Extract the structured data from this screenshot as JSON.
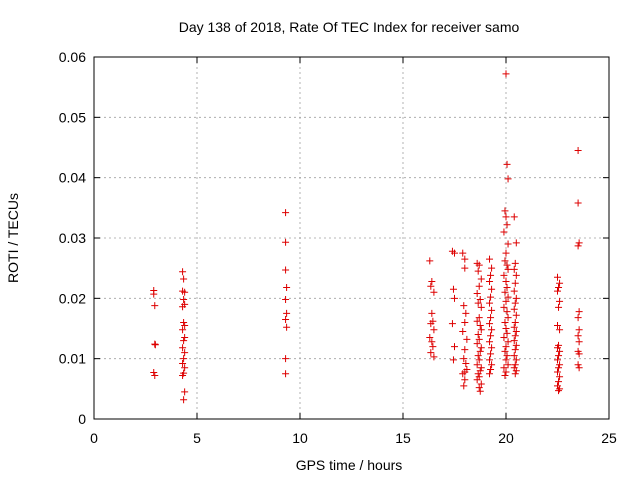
{
  "chart_data": {
    "type": "scatter",
    "title": "Day 138 of 2018, Rate Of TEC Index for receiver samo",
    "xlabel": "GPS time / hours",
    "ylabel": "ROTI / TECUs",
    "xlim": [
      0,
      25
    ],
    "ylim": [
      0,
      0.06
    ],
    "x_ticks": [
      0,
      5,
      10,
      15,
      20,
      25
    ],
    "y_ticks": [
      0,
      0.01,
      0.02,
      0.03,
      0.04,
      0.05,
      0.06
    ],
    "x_tick_labels": [
      "0",
      "5",
      "10",
      "15",
      "20",
      "25"
    ],
    "y_tick_labels": [
      "0",
      "0.01",
      "0.02",
      "0.03",
      "0.04",
      "0.05",
      "0.06"
    ],
    "grid": true,
    "marker": "plus",
    "color": "#dd0000",
    "series": [
      {
        "points": [
          [
            2.9,
            0.0213
          ],
          [
            2.9,
            0.0207
          ],
          [
            2.95,
            0.0188
          ],
          [
            2.95,
            0.0124
          ],
          [
            2.98,
            0.0123
          ],
          [
            2.9,
            0.0077
          ],
          [
            2.95,
            0.0072
          ],
          [
            4.3,
            0.0244
          ],
          [
            4.35,
            0.0232
          ],
          [
            4.3,
            0.0212
          ],
          [
            4.4,
            0.021
          ],
          [
            4.35,
            0.0198
          ],
          [
            4.4,
            0.019
          ],
          [
            4.3,
            0.0186
          ],
          [
            4.35,
            0.016
          ],
          [
            4.4,
            0.0155
          ],
          [
            4.3,
            0.0148
          ],
          [
            4.4,
            0.0135
          ],
          [
            4.35,
            0.013
          ],
          [
            4.3,
            0.0118
          ],
          [
            4.4,
            0.011
          ],
          [
            4.35,
            0.01
          ],
          [
            4.3,
            0.0092
          ],
          [
            4.4,
            0.0085
          ],
          [
            4.35,
            0.0076
          ],
          [
            4.3,
            0.0072
          ],
          [
            4.4,
            0.0045
          ],
          [
            4.35,
            0.0032
          ],
          [
            9.3,
            0.0342
          ],
          [
            9.3,
            0.0293
          ],
          [
            9.3,
            0.0247
          ],
          [
            9.35,
            0.0218
          ],
          [
            9.3,
            0.0198
          ],
          [
            9.35,
            0.0175
          ],
          [
            9.3,
            0.0165
          ],
          [
            9.35,
            0.0152
          ],
          [
            9.3,
            0.01
          ],
          [
            9.3,
            0.0075
          ],
          [
            16.3,
            0.0262
          ],
          [
            16.4,
            0.0228
          ],
          [
            16.35,
            0.022
          ],
          [
            16.5,
            0.021
          ],
          [
            16.4,
            0.0175
          ],
          [
            16.45,
            0.0162
          ],
          [
            16.35,
            0.0158
          ],
          [
            16.5,
            0.0148
          ],
          [
            16.3,
            0.0135
          ],
          [
            16.4,
            0.0128
          ],
          [
            16.45,
            0.012
          ],
          [
            16.35,
            0.011
          ],
          [
            16.5,
            0.0103
          ],
          [
            17.4,
            0.0278
          ],
          [
            17.5,
            0.0275
          ],
          [
            17.45,
            0.0215
          ],
          [
            17.5,
            0.02
          ],
          [
            17.4,
            0.0158
          ],
          [
            17.5,
            0.012
          ],
          [
            17.45,
            0.0098
          ],
          [
            17.9,
            0.0275
          ],
          [
            18.0,
            0.0265
          ],
          [
            18.0,
            0.025
          ],
          [
            17.95,
            0.0188
          ],
          [
            18.05,
            0.0175
          ],
          [
            18.0,
            0.016
          ],
          [
            17.9,
            0.0145
          ],
          [
            18.1,
            0.0132
          ],
          [
            18.0,
            0.0115
          ],
          [
            17.95,
            0.01
          ],
          [
            18.05,
            0.0092
          ],
          [
            18.1,
            0.0082
          ],
          [
            18.0,
            0.0078
          ],
          [
            17.9,
            0.0075
          ],
          [
            18.0,
            0.0065
          ],
          [
            17.95,
            0.0055
          ],
          [
            18.6,
            0.0258
          ],
          [
            18.7,
            0.0255
          ],
          [
            18.65,
            0.0245
          ],
          [
            18.8,
            0.0232
          ],
          [
            18.7,
            0.022
          ],
          [
            18.6,
            0.0208
          ],
          [
            18.75,
            0.0198
          ],
          [
            18.65,
            0.0192
          ],
          [
            18.8,
            0.0185
          ],
          [
            18.7,
            0.0168
          ],
          [
            18.6,
            0.0162
          ],
          [
            18.75,
            0.0155
          ],
          [
            18.8,
            0.0148
          ],
          [
            18.65,
            0.014
          ],
          [
            18.7,
            0.0132
          ],
          [
            18.6,
            0.0125
          ],
          [
            18.8,
            0.0118
          ],
          [
            18.75,
            0.0112
          ],
          [
            18.65,
            0.0105
          ],
          [
            18.7,
            0.0098
          ],
          [
            18.6,
            0.009
          ],
          [
            18.8,
            0.0085
          ],
          [
            18.75,
            0.008
          ],
          [
            18.65,
            0.0075
          ],
          [
            18.7,
            0.007
          ],
          [
            18.6,
            0.0065
          ],
          [
            18.8,
            0.0058
          ],
          [
            18.7,
            0.0052
          ],
          [
            18.75,
            0.0046
          ],
          [
            19.2,
            0.0265
          ],
          [
            19.3,
            0.025
          ],
          [
            19.25,
            0.0238
          ],
          [
            19.2,
            0.0228
          ],
          [
            19.3,
            0.0215
          ],
          [
            19.25,
            0.0202
          ],
          [
            19.2,
            0.0192
          ],
          [
            19.3,
            0.018
          ],
          [
            19.25,
            0.0168
          ],
          [
            19.2,
            0.0158
          ],
          [
            19.3,
            0.0148
          ],
          [
            19.25,
            0.0138
          ],
          [
            19.2,
            0.0128
          ],
          [
            19.3,
            0.0118
          ],
          [
            19.25,
            0.0108
          ],
          [
            19.2,
            0.0098
          ],
          [
            19.3,
            0.009
          ],
          [
            19.25,
            0.0082
          ],
          [
            19.2,
            0.0075
          ],
          [
            20.0,
            0.0572
          ],
          [
            20.05,
            0.0422
          ],
          [
            20.1,
            0.0398
          ],
          [
            19.95,
            0.0345
          ],
          [
            20.0,
            0.0335
          ],
          [
            20.05,
            0.0322
          ],
          [
            19.9,
            0.031
          ],
          [
            20.1,
            0.029
          ],
          [
            20.0,
            0.0275
          ],
          [
            19.95,
            0.0262
          ],
          [
            20.05,
            0.0255
          ],
          [
            20.1,
            0.0248
          ],
          [
            19.9,
            0.0238
          ],
          [
            20.0,
            0.0228
          ],
          [
            20.05,
            0.0218
          ],
          [
            19.95,
            0.021
          ],
          [
            20.1,
            0.0202
          ],
          [
            20.0,
            0.0195
          ],
          [
            19.9,
            0.0185
          ],
          [
            20.05,
            0.0178
          ],
          [
            20.1,
            0.0168
          ],
          [
            19.95,
            0.016
          ],
          [
            20.0,
            0.015
          ],
          [
            20.05,
            0.0142
          ],
          [
            19.9,
            0.0135
          ],
          [
            20.1,
            0.0128
          ],
          [
            20.0,
            0.012
          ],
          [
            19.95,
            0.0112
          ],
          [
            20.05,
            0.0105
          ],
          [
            20.0,
            0.0098
          ],
          [
            20.1,
            0.009
          ],
          [
            19.9,
            0.0085
          ],
          [
            20.0,
            0.0078
          ],
          [
            19.95,
            0.0072
          ],
          [
            20.4,
            0.0335
          ],
          [
            20.5,
            0.0292
          ],
          [
            20.45,
            0.0258
          ],
          [
            20.4,
            0.0248
          ],
          [
            20.5,
            0.0238
          ],
          [
            20.45,
            0.0225
          ],
          [
            20.4,
            0.0212
          ],
          [
            20.5,
            0.02
          ],
          [
            20.45,
            0.0192
          ],
          [
            20.4,
            0.0182
          ],
          [
            20.5,
            0.0172
          ],
          [
            20.45,
            0.016
          ],
          [
            20.4,
            0.0152
          ],
          [
            20.5,
            0.0145
          ],
          [
            20.45,
            0.0138
          ],
          [
            20.4,
            0.013
          ],
          [
            20.5,
            0.0122
          ],
          [
            20.45,
            0.0115
          ],
          [
            20.4,
            0.0105
          ],
          [
            20.5,
            0.0098
          ],
          [
            20.45,
            0.009
          ],
          [
            20.4,
            0.0085
          ],
          [
            20.5,
            0.008
          ],
          [
            20.45,
            0.0075
          ],
          [
            22.5,
            0.0235
          ],
          [
            22.6,
            0.0225
          ],
          [
            22.55,
            0.0218
          ],
          [
            22.5,
            0.0212
          ],
          [
            22.6,
            0.0195
          ],
          [
            22.55,
            0.0185
          ],
          [
            22.5,
            0.0155
          ],
          [
            22.6,
            0.0148
          ],
          [
            22.55,
            0.0122
          ],
          [
            22.5,
            0.0118
          ],
          [
            22.6,
            0.0112
          ],
          [
            22.55,
            0.0105
          ],
          [
            22.5,
            0.0098
          ],
          [
            22.6,
            0.009
          ],
          [
            22.55,
            0.0085
          ],
          [
            22.5,
            0.0078
          ],
          [
            22.6,
            0.007
          ],
          [
            22.55,
            0.0062
          ],
          [
            22.5,
            0.0055
          ],
          [
            22.6,
            0.005
          ],
          [
            22.55,
            0.0047
          ],
          [
            23.5,
            0.0445
          ],
          [
            23.5,
            0.0358
          ],
          [
            23.55,
            0.0292
          ],
          [
            23.5,
            0.0287
          ],
          [
            23.55,
            0.0178
          ],
          [
            23.5,
            0.0168
          ],
          [
            23.55,
            0.0148
          ],
          [
            23.5,
            0.0138
          ],
          [
            23.55,
            0.0128
          ],
          [
            23.5,
            0.0112
          ],
          [
            23.55,
            0.0108
          ],
          [
            23.5,
            0.009
          ],
          [
            23.55,
            0.0085
          ]
        ]
      }
    ]
  }
}
